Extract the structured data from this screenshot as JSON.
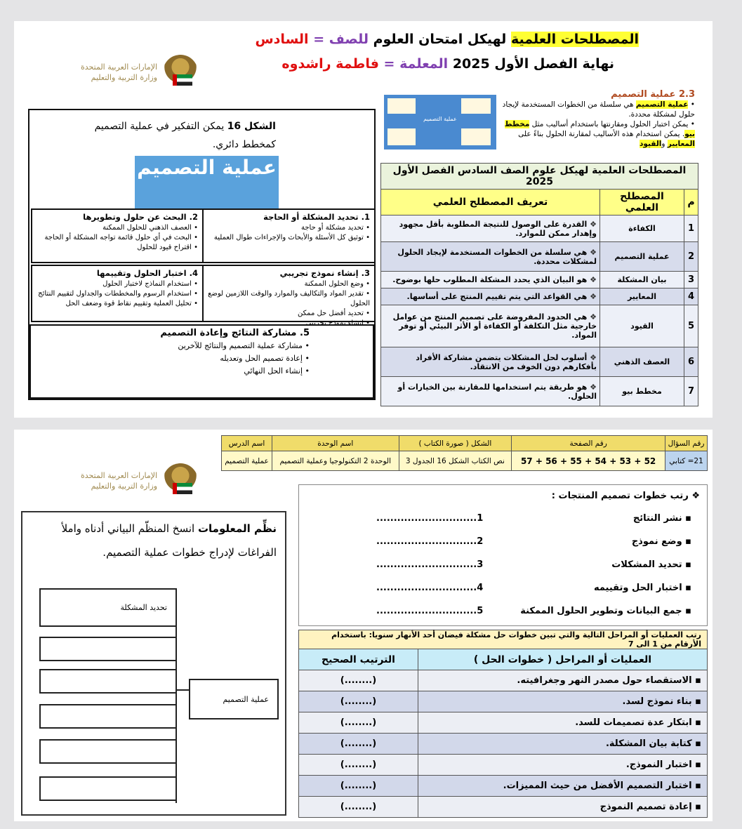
{
  "header": {
    "title_highlight": "المصطلحات العلمية",
    "title_rest": "لهيكل امتحان العلوم",
    "grade_label": "للصف =",
    "grade_value": "السادس",
    "term": "نهاية الفصل الأول 2025",
    "teacher_label": "المعلمة =",
    "teacher_value": "فاطمة راشدوه"
  },
  "logo": {
    "line1": "الإمارات العربية المتحدة",
    "line2": "وزارة التربية والتعليم"
  },
  "figure": {
    "caption_bold": "الشكل 16",
    "caption": "يمكن التفكير في عملية التصميم كمخطط دائري.",
    "banner": "عملية التصميم",
    "steps": [
      {
        "title": "1. تحديد المشكلة أو الحاجة",
        "items": [
          "تحديد مشكلة أو حاجة",
          "توثيق كل الأسئلة والأبحاث والإجراءات طوال العملية"
        ]
      },
      {
        "title": "2. البحث عن حلول وتطويرها",
        "items": [
          "العصف الذهني للحلول الممكنة",
          "البحث في أي حلول قائمة تواجه المشكلة أو الحاجة",
          "اقتراح قيود للحلول"
        ]
      },
      {
        "title": "3. إنشاء نموذج تجريبي",
        "items": [
          "وضع الحلول الممكنة",
          "تقدير المواد والتكاليف والموارد والوقت اللازمين لوضع الحلول",
          "تحديد أفضل حل ممكن",
          "إنشاء نموذج تجريبي"
        ]
      },
      {
        "title": "4. اختبار الحلول وتقييمها",
        "items": [
          "استخدام النماذج لاختبار الحلول",
          "استخدام الرسوم والمخططات والجداول لتقييم النتائج",
          "تحليل العملية وتقييم نقاط قوة وضعف الحل"
        ]
      },
      {
        "title": "5. مشاركة النتائج وإعادة التصميم",
        "items": [
          "مشاركة عملية التصميم والنتائج للآخرين",
          "إعادة تصميم الحل وتعديله",
          "إنشاء الحل النهائي"
        ]
      }
    ]
  },
  "excerpt": {
    "heading": "2.3 عملية التصميم",
    "bullet1_bold": "عملية التصميم",
    "bullet1": "هي سلسلة من الخطوات المستخدمة لإيجاد حلول لمشكلة محددة.",
    "bullet2a": "يمكن اختبار الحلول ومقارنتها باستخدام أساليب مثل",
    "bullet2_bold": "مخطط بيو",
    "bullet2b": ". يمكن استخدام هذه الأساليب لمقارنة الحلول بناءً على",
    "bullet2_c1": "المعايير",
    "bullet2_and": "و",
    "bullet2_c2": "القيود",
    "thumb_center": "عملية التصميم"
  },
  "terms_table": {
    "caption": "المصطلحات العلمية لهيكل علوم الصف السادس الفصل الأول 2025",
    "headers": [
      "م",
      "المصطلح العلمي",
      "تعريف المصطلح العلمي"
    ],
    "rows": [
      [
        "1",
        "الكفاءة",
        "القدرة على الوصول للنتيجة المطلوبة بأقل مجهود وإهدار ممكن للموارد."
      ],
      [
        "2",
        "عملية التصميم",
        "هي سلسلة من الخطوات المستخدمة لإيجاد الحلول لمشكلات محددة."
      ],
      [
        "3",
        "بيان المشكلة",
        "هو البيان الذي يحدد المشكلة المطلوب حلها بوضوح."
      ],
      [
        "4",
        "المعايير",
        "هي القواعد التي يتم تقييم المنتج على أساسها."
      ],
      [
        "5",
        "القيود",
        "هي الحدود المفروضة على تصميم المنتج من عوامل خارجية مثل التكلفة أو الكفاءة أو الأثر البيئي أو توفر المواد."
      ],
      [
        "6",
        "العصف الذهني",
        "أسلوب لحل المشكلات يتضمن مشاركة الأفراد بأفكارهم دون الخوف من الانتقاد."
      ],
      [
        "7",
        "مخطط بيو",
        "هو طريقة يتم استخدامها للمقارنة بين الخيارات أو الحلول."
      ]
    ]
  },
  "info_table": {
    "headers": [
      "رقم السؤال",
      "رقم الصفحة",
      "الشكل ( صورة الكتاب )",
      "اسم الوحدة",
      "اسم الدرس"
    ],
    "values": [
      "21= كتابي",
      "52 + 53 + 54 + 55 + 56 + 57",
      "نص الكتاب الشكل 16 الجدول 3",
      "الوحدة 2 التكنولوجيا وعملية التصميم",
      "عملية التصميم"
    ]
  },
  "ordering": {
    "title": "رتب خطوات تصميم المنتجات :",
    "items": [
      "نشر النتائج",
      "وضع نموذج",
      "تحديد المشكلات",
      "اختبار الحل وتقييمه",
      "جمع البيانات وتطوير الحلول الممكنة"
    ],
    "blanks": [
      "1.............................",
      "2.............................",
      "3.............................",
      "4.............................",
      "5............................."
    ]
  },
  "flood_table": {
    "caption": "رتب العمليات أو المراحل التالية والتي تبين خطوات حل مشكلة فيضان أحد الأنهار سنويا: باستخدام الأرقام من 1 الى 7",
    "headers": [
      "العمليات أو المراحل ( خطوات الحل )",
      "الترتيب الصحيح"
    ],
    "rows": [
      "الاستقصاء حول مصدر النهر وجغرافيته.",
      "بناء نموذج لسد.",
      "ابتكار عدة تصميمات للسد.",
      "كتابة بيان المشكلة.",
      "اختبار النموذج.",
      "اختبار التصميم الأفضل من حيث المميزات.",
      "إعادة تصميم النموذج"
    ],
    "answer_blank": "(........)"
  },
  "organizer": {
    "instruction_bold": "نظِّم المعلومات",
    "instruction": "انسخ المنظّم البياني أدناه واملأ الفراغات لإدراج خطوات عملية التصميم.",
    "first_box": "تحديد المشكلة",
    "center_box": "عملية التصميم"
  }
}
